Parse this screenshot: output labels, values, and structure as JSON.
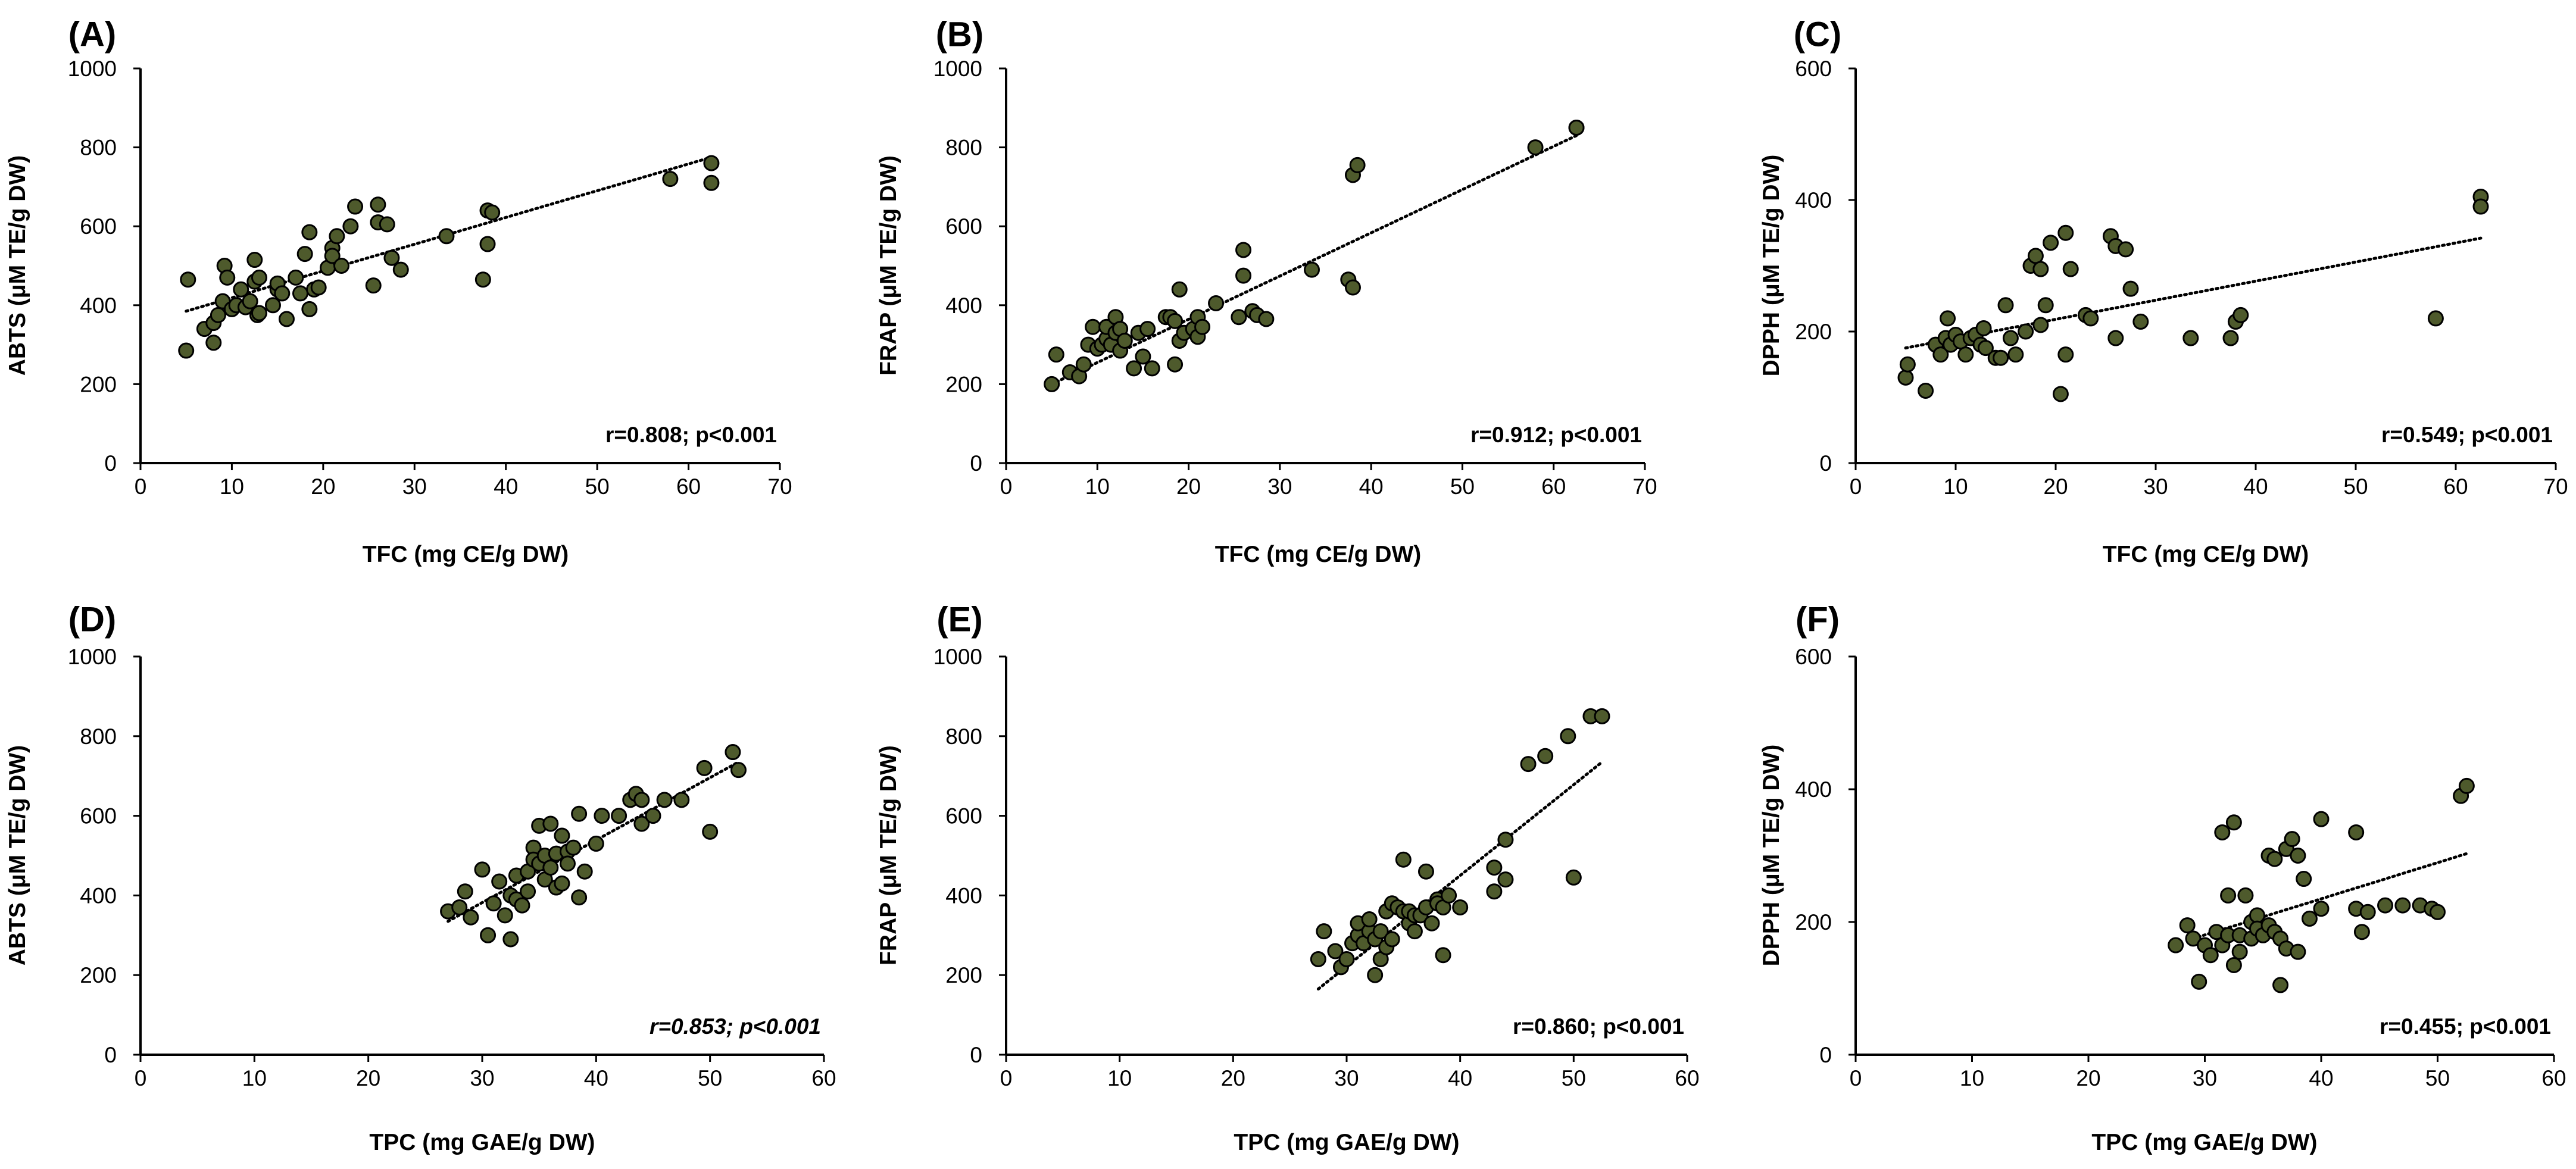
{
  "chart_data": [
    {
      "type": "scatter",
      "panel_label": "(A)",
      "xlabel": "TFC (mg CE/g DW)",
      "ylabel": "ABTS (μM TE/g DW)",
      "xlim": [
        0,
        70
      ],
      "xticks": [
        0,
        10,
        20,
        30,
        40,
        50,
        60,
        70
      ],
      "ylim": [
        0,
        1000
      ],
      "yticks": [
        0,
        200,
        400,
        600,
        800,
        1000
      ],
      "stat_text": "r=0.808; p<0.001",
      "stat_italic": false,
      "trendline": [
        [
          5,
          385
        ],
        [
          62.5,
          775
        ]
      ],
      "points": [
        [
          5,
          285
        ],
        [
          5.2,
          465
        ],
        [
          7,
          340
        ],
        [
          8,
          305
        ],
        [
          8,
          355
        ],
        [
          8.5,
          375
        ],
        [
          9,
          410
        ],
        [
          9.2,
          500
        ],
        [
          9.5,
          470
        ],
        [
          10,
          390
        ],
        [
          10.5,
          400
        ],
        [
          11,
          440
        ],
        [
          11.5,
          395
        ],
        [
          12,
          410
        ],
        [
          12.5,
          460
        ],
        [
          12.5,
          515
        ],
        [
          12.8,
          375
        ],
        [
          13,
          380
        ],
        [
          13,
          470
        ],
        [
          14.5,
          400
        ],
        [
          15,
          440
        ],
        [
          15,
          455
        ],
        [
          15.5,
          430
        ],
        [
          16,
          365
        ],
        [
          17,
          470
        ],
        [
          17.5,
          430
        ],
        [
          18,
          530
        ],
        [
          18.5,
          390
        ],
        [
          18.5,
          585
        ],
        [
          19,
          440
        ],
        [
          19.5,
          445
        ],
        [
          20.5,
          495
        ],
        [
          21,
          545
        ],
        [
          21,
          525
        ],
        [
          21.5,
          575
        ],
        [
          22,
          500
        ],
        [
          23,
          600
        ],
        [
          23.5,
          650
        ],
        [
          25.5,
          450
        ],
        [
          26,
          655
        ],
        [
          26,
          610
        ],
        [
          27,
          605
        ],
        [
          27.5,
          520
        ],
        [
          28.5,
          490
        ],
        [
          33.5,
          575
        ],
        [
          37.5,
          465
        ],
        [
          38,
          640
        ],
        [
          38,
          555
        ],
        [
          38.5,
          635
        ],
        [
          58,
          720
        ],
        [
          62.5,
          760
        ],
        [
          62.5,
          710
        ]
      ]
    },
    {
      "type": "scatter",
      "panel_label": "(B)",
      "xlabel": "TFC (mg CE/g DW)",
      "ylabel": "FRAP (μM TE/g DW)",
      "xlim": [
        0,
        70
      ],
      "xticks": [
        0,
        10,
        20,
        30,
        40,
        50,
        60,
        70
      ],
      "ylim": [
        0,
        1000
      ],
      "yticks": [
        0,
        200,
        400,
        600,
        800,
        1000
      ],
      "stat_text": "r=0.912; p<0.001",
      "stat_italic": false,
      "trendline": [
        [
          5,
          200
        ],
        [
          62.5,
          830
        ]
      ],
      "points": [
        [
          5,
          200
        ],
        [
          5.5,
          275
        ],
        [
          7,
          230
        ],
        [
          8,
          220
        ],
        [
          8.5,
          250
        ],
        [
          9,
          300
        ],
        [
          9.5,
          345
        ],
        [
          10,
          290
        ],
        [
          10.5,
          300
        ],
        [
          11,
          315
        ],
        [
          11,
          345
        ],
        [
          11.5,
          300
        ],
        [
          12,
          330
        ],
        [
          12,
          370
        ],
        [
          12.5,
          340
        ],
        [
          12.5,
          285
        ],
        [
          13,
          310
        ],
        [
          14,
          240
        ],
        [
          14.5,
          330
        ],
        [
          15,
          270
        ],
        [
          15.5,
          340
        ],
        [
          16,
          240
        ],
        [
          17.5,
          370
        ],
        [
          18,
          370
        ],
        [
          18.5,
          250
        ],
        [
          18.5,
          360
        ],
        [
          19,
          440
        ],
        [
          19,
          310
        ],
        [
          19.5,
          330
        ],
        [
          20.5,
          340
        ],
        [
          21,
          370
        ],
        [
          21,
          320
        ],
        [
          21.5,
          345
        ],
        [
          23,
          405
        ],
        [
          25.5,
          370
        ],
        [
          26,
          540
        ],
        [
          26,
          475
        ],
        [
          27,
          385
        ],
        [
          27.5,
          375
        ],
        [
          28.5,
          365
        ],
        [
          33.5,
          490
        ],
        [
          37.5,
          465
        ],
        [
          38,
          730
        ],
        [
          38,
          445
        ],
        [
          38.5,
          755
        ],
        [
          58,
          800
        ],
        [
          62.5,
          850
        ],
        [
          62.5,
          850
        ]
      ]
    },
    {
      "type": "scatter",
      "panel_label": "(C)",
      "xlabel": "TFC (mg CE/g DW)",
      "ylabel": "DPPH (μM TE/g DW)",
      "xlim": [
        0,
        70
      ],
      "xticks": [
        0,
        10,
        20,
        30,
        40,
        50,
        60,
        70
      ],
      "ylim": [
        0,
        600
      ],
      "yticks": [
        0,
        200,
        400,
        600
      ],
      "stat_text": "r=0.549; p<0.001",
      "stat_italic": false,
      "trendline": [
        [
          5,
          175
        ],
        [
          62.5,
          342
        ]
      ],
      "points": [
        [
          5,
          130
        ],
        [
          5.2,
          150
        ],
        [
          7,
          110
        ],
        [
          8,
          180
        ],
        [
          8.5,
          165
        ],
        [
          9,
          190
        ],
        [
          9.2,
          220
        ],
        [
          9.5,
          180
        ],
        [
          10,
          195
        ],
        [
          10.5,
          185
        ],
        [
          11,
          165
        ],
        [
          11.5,
          190
        ],
        [
          12,
          195
        ],
        [
          12.5,
          180
        ],
        [
          12.8,
          205
        ],
        [
          13,
          175
        ],
        [
          14,
          160
        ],
        [
          14.5,
          160
        ],
        [
          15,
          240
        ],
        [
          15.5,
          190
        ],
        [
          16,
          165
        ],
        [
          17,
          200
        ],
        [
          17.5,
          300
        ],
        [
          18,
          315
        ],
        [
          18.5,
          210
        ],
        [
          18.5,
          295
        ],
        [
          19,
          240
        ],
        [
          19.5,
          335
        ],
        [
          20.5,
          105
        ],
        [
          21,
          350
        ],
        [
          21,
          165
        ],
        [
          21.5,
          295
        ],
        [
          23,
          225
        ],
        [
          23.5,
          220
        ],
        [
          25.5,
          345
        ],
        [
          26,
          330
        ],
        [
          26,
          190
        ],
        [
          27,
          325
        ],
        [
          27.5,
          265
        ],
        [
          28.5,
          215
        ],
        [
          33.5,
          190
        ],
        [
          37.5,
          190
        ],
        [
          38,
          215
        ],
        [
          38.5,
          225
        ],
        [
          58,
          220
        ],
        [
          62.5,
          405
        ],
        [
          62.5,
          390
        ]
      ]
    },
    {
      "type": "scatter",
      "panel_label": "(D)",
      "xlabel": "TPC (mg GAE/g DW)",
      "ylabel": "ABTS (μM TE/g DW)",
      "xlim": [
        0,
        60
      ],
      "xticks": [
        0,
        10,
        20,
        30,
        40,
        50,
        60
      ],
      "ylim": [
        0,
        1000
      ],
      "yticks": [
        0,
        200,
        400,
        600,
        800,
        1000
      ],
      "stat_text": "r=0.853; p<0.001",
      "stat_italic": true,
      "trendline": [
        [
          27,
          335
        ],
        [
          52.5,
          735
        ]
      ],
      "points": [
        [
          27,
          360
        ],
        [
          28,
          370
        ],
        [
          28.5,
          410
        ],
        [
          29,
          345
        ],
        [
          30,
          465
        ],
        [
          30.5,
          300
        ],
        [
          31,
          380
        ],
        [
          31.5,
          435
        ],
        [
          32,
          350
        ],
        [
          32.5,
          400
        ],
        [
          32.5,
          290
        ],
        [
          33,
          450
        ],
        [
          33,
          390
        ],
        [
          33.5,
          375
        ],
        [
          34,
          460
        ],
        [
          34,
          410
        ],
        [
          34.5,
          520
        ],
        [
          34.5,
          490
        ],
        [
          35,
          575
        ],
        [
          35,
          480
        ],
        [
          35.5,
          500
        ],
        [
          35.5,
          440
        ],
        [
          36,
          580
        ],
        [
          36,
          470
        ],
        [
          36.5,
          420
        ],
        [
          36.5,
          505
        ],
        [
          37,
          550
        ],
        [
          37,
          430
        ],
        [
          37.5,
          510
        ],
        [
          37.5,
          480
        ],
        [
          38,
          520
        ],
        [
          38.5,
          395
        ],
        [
          38.5,
          605
        ],
        [
          39,
          460
        ],
        [
          40,
          530
        ],
        [
          40.5,
          600
        ],
        [
          42,
          600
        ],
        [
          43,
          640
        ],
        [
          43.5,
          655
        ],
        [
          44,
          640
        ],
        [
          44,
          580
        ],
        [
          45,
          600
        ],
        [
          46,
          640
        ],
        [
          47.5,
          640
        ],
        [
          49.5,
          720
        ],
        [
          50,
          560
        ],
        [
          52,
          760
        ],
        [
          52.5,
          715
        ]
      ]
    },
    {
      "type": "scatter",
      "panel_label": "(E)",
      "xlabel": "TPC (mg GAE/g DW)",
      "ylabel": "FRAP (μM TE/g DW)",
      "xlim": [
        0,
        60
      ],
      "xticks": [
        0,
        10,
        20,
        30,
        40,
        50,
        60
      ],
      "ylim": [
        0,
        1000
      ],
      "yticks": [
        0,
        200,
        400,
        600,
        800,
        1000
      ],
      "stat_text": "r=0.860; p<0.001",
      "stat_italic": false,
      "trendline": [
        [
          27.5,
          165
        ],
        [
          52.5,
          735
        ]
      ],
      "points": [
        [
          27.5,
          240
        ],
        [
          28,
          310
        ],
        [
          29,
          260
        ],
        [
          29.5,
          220
        ],
        [
          30,
          240
        ],
        [
          30.5,
          280
        ],
        [
          31,
          300
        ],
        [
          31,
          330
        ],
        [
          31.5,
          280
        ],
        [
          32,
          310
        ],
        [
          32,
          340
        ],
        [
          32.5,
          290
        ],
        [
          32.5,
          200
        ],
        [
          33,
          240
        ],
        [
          33,
          310
        ],
        [
          33.5,
          360
        ],
        [
          33.5,
          270
        ],
        [
          34,
          290
        ],
        [
          34,
          380
        ],
        [
          34.5,
          370
        ],
        [
          35,
          360
        ],
        [
          35,
          490
        ],
        [
          35.5,
          330
        ],
        [
          35.5,
          360
        ],
        [
          36,
          350
        ],
        [
          36,
          310
        ],
        [
          36.5,
          350
        ],
        [
          37,
          460
        ],
        [
          37,
          370
        ],
        [
          37.5,
          330
        ],
        [
          38,
          390
        ],
        [
          38,
          380
        ],
        [
          38.5,
          250
        ],
        [
          38.5,
          370
        ],
        [
          39,
          400
        ],
        [
          40,
          370
        ],
        [
          43,
          470
        ],
        [
          43,
          410
        ],
        [
          44,
          540
        ],
        [
          44,
          440
        ],
        [
          46,
          730
        ],
        [
          47.5,
          750
        ],
        [
          49.5,
          800
        ],
        [
          50,
          445
        ],
        [
          51.5,
          850
        ],
        [
          52.5,
          850
        ]
      ]
    },
    {
      "type": "scatter",
      "panel_label": "(F)",
      "xlabel": "TPC (mg GAE/g DW)",
      "ylabel": "DPPH (μM TE/g DW)",
      "xlim": [
        0,
        60
      ],
      "xticks": [
        0,
        10,
        20,
        30,
        40,
        50,
        60
      ],
      "ylim": [
        0,
        600
      ],
      "yticks": [
        0,
        200,
        400,
        600
      ],
      "stat_text": "r=0.455; p<0.001",
      "stat_italic": false,
      "trendline": [
        [
          29,
          175
        ],
        [
          52.5,
          303
        ]
      ],
      "points": [
        [
          27.5,
          165
        ],
        [
          28.5,
          195
        ],
        [
          29,
          175
        ],
        [
          29.5,
          110
        ],
        [
          30,
          165
        ],
        [
          30.5,
          150
        ],
        [
          31,
          185
        ],
        [
          31.5,
          165
        ],
        [
          31.5,
          335
        ],
        [
          32,
          240
        ],
        [
          32,
          180
        ],
        [
          32.5,
          350
        ],
        [
          32.5,
          135
        ],
        [
          33,
          155
        ],
        [
          33,
          180
        ],
        [
          33.5,
          240
        ],
        [
          34,
          200
        ],
        [
          34,
          175
        ],
        [
          34.5,
          210
        ],
        [
          34.5,
          190
        ],
        [
          35,
          180
        ],
        [
          35.5,
          300
        ],
        [
          35.5,
          195
        ],
        [
          36,
          295
        ],
        [
          36,
          185
        ],
        [
          36.5,
          105
        ],
        [
          36.5,
          175
        ],
        [
          37,
          310
        ],
        [
          37,
          160
        ],
        [
          37.5,
          325
        ],
        [
          38,
          300
        ],
        [
          38,
          155
        ],
        [
          38.5,
          265
        ],
        [
          39,
          205
        ],
        [
          40,
          355
        ],
        [
          40,
          220
        ],
        [
          43,
          335
        ],
        [
          43,
          220
        ],
        [
          43.5,
          185
        ],
        [
          44,
          215
        ],
        [
          45.5,
          225
        ],
        [
          47,
          225
        ],
        [
          48.5,
          225
        ],
        [
          49.5,
          220
        ],
        [
          50,
          215
        ],
        [
          52,
          390
        ],
        [
          52.5,
          405
        ]
      ]
    }
  ]
}
